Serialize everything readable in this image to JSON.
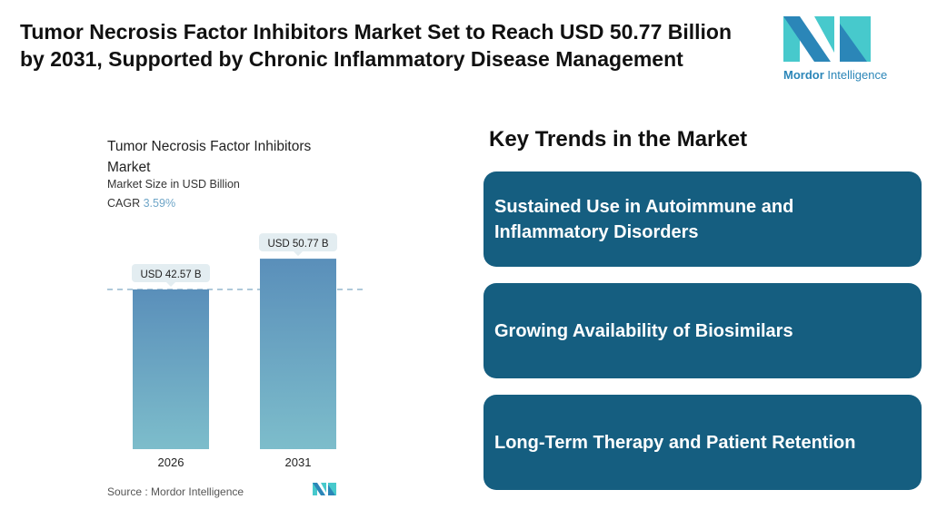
{
  "title": "Tumor Necrosis Factor Inhibitors Market Set to Reach USD 50.77 Billion by 2031, Supported by Chronic Inflammatory Disease Management",
  "logo": {
    "brand": "Mordor",
    "brand2": "Intelligence"
  },
  "chart_data": {
    "type": "bar",
    "title": "Tumor Necrosis Factor Inhibitors Market",
    "subtitle": "Market Size in USD Billion",
    "cagr_label": "CAGR",
    "cagr_value": "3.59%",
    "categories": [
      "2026",
      "2031"
    ],
    "values": [
      42.57,
      50.77
    ],
    "data_labels": [
      "USD 42.57 B",
      "USD 50.77 B"
    ],
    "ylim": [
      0,
      55
    ],
    "grid": false,
    "colors": {
      "bar_top": "#5a8fba",
      "bar_bottom": "#7dbdcb"
    }
  },
  "source": "Source :  Mordor Intelligence",
  "trends": {
    "heading": "Key Trends in the Market",
    "items": [
      "Sustained Use in Autoimmune and Inflammatory Disorders",
      "Growing Availability of Biosimilars",
      "Long-Term Therapy and Patient Retention"
    ],
    "color": "#155e80"
  }
}
